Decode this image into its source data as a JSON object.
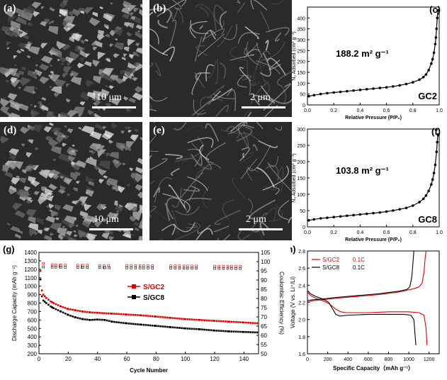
{
  "sem_panels": [
    {
      "label": "(a)",
      "scale": "10 μm"
    },
    {
      "label": "(b)",
      "scale": "2 μm"
    },
    {
      "label": "(d)",
      "scale": "10 μm"
    },
    {
      "label": "(e)",
      "scale": "2 μm"
    }
  ],
  "chart_data": [
    {
      "panel": "(c)",
      "type": "line",
      "xlabel": "Relative Pressure (P/P₀)",
      "ylabel": "N₂ Adsorbed (cm³ g⁻¹)",
      "xlim": [
        0.0,
        1.0
      ],
      "ylim": [
        0,
        450
      ],
      "xticks": [
        "0.0",
        "0.2",
        "0.4",
        "0.6",
        "0.8",
        "1.0"
      ],
      "yticks": [
        "0",
        "50",
        "100",
        "150",
        "200",
        "250",
        "300",
        "350",
        "400"
      ],
      "annotation": "188.2 m² g⁻¹",
      "sample": "GC2",
      "color": "#000000",
      "x": [
        0.01,
        0.05,
        0.1,
        0.15,
        0.2,
        0.25,
        0.3,
        0.35,
        0.4,
        0.45,
        0.5,
        0.55,
        0.6,
        0.65,
        0.7,
        0.75,
        0.8,
        0.85,
        0.88,
        0.9,
        0.92,
        0.94,
        0.95,
        0.96,
        0.97,
        0.975,
        0.98,
        0.985,
        0.99
      ],
      "y": [
        40,
        45,
        50,
        54,
        57,
        60,
        63,
        66,
        69,
        72,
        75,
        78,
        81,
        85,
        90,
        96,
        104,
        116,
        128,
        140,
        160,
        190,
        210,
        240,
        280,
        310,
        350,
        400,
        435
      ]
    },
    {
      "panel": "(f)",
      "type": "line",
      "xlabel": "Relative Pressure (P/P₀)",
      "ylabel": "N₂ Adsorbed (cm³ g⁻¹)",
      "xlim": [
        0.0,
        1.0
      ],
      "ylim": [
        0,
        300
      ],
      "xticks": [
        "0.0",
        "0.2",
        "0.4",
        "0.6",
        "0.8",
        "1.0"
      ],
      "yticks": [
        "0",
        "50",
        "100",
        "150",
        "200",
        "250",
        "300"
      ],
      "annotation": "103.8 m² g⁻¹",
      "sample": "GC8",
      "color": "#000000",
      "x": [
        0.01,
        0.05,
        0.1,
        0.15,
        0.2,
        0.25,
        0.3,
        0.35,
        0.4,
        0.45,
        0.5,
        0.55,
        0.6,
        0.65,
        0.7,
        0.75,
        0.8,
        0.85,
        0.88,
        0.9,
        0.92,
        0.94,
        0.95,
        0.96,
        0.97,
        0.98,
        0.985,
        0.99
      ],
      "y": [
        20,
        23,
        26,
        28,
        30,
        32,
        34,
        36,
        38,
        40,
        42,
        44,
        47,
        50,
        54,
        58,
        65,
        76,
        86,
        96,
        110,
        130,
        145,
        165,
        190,
        230,
        260,
        283
      ]
    },
    {
      "panel": "(g)",
      "type": "scatter",
      "xlabel": "Cycle Number",
      "ylabel": "Discharge Capacity (mAh g⁻¹)",
      "y2label": "Coulombic Efficiency (%)",
      "xlim": [
        0,
        150
      ],
      "ylim": [
        200,
        1400
      ],
      "y2lim": [
        50,
        105
      ],
      "xticks": [
        "0",
        "20",
        "40",
        "60",
        "80",
        "100",
        "120",
        "140"
      ],
      "yticks": [
        "200",
        "300",
        "400",
        "500",
        "600",
        "700",
        "800",
        "900",
        "1000",
        "1100",
        "1200",
        "1300",
        "1400"
      ],
      "y2ticks": [
        "50",
        "55",
        "60",
        "65",
        "70",
        "75",
        "80",
        "85",
        "90",
        "95",
        "100",
        "105"
      ],
      "legend_position": "center",
      "series": [
        {
          "name": "S/GC2",
          "color": "#e00000",
          "x": [
            1,
            2,
            3,
            5,
            8,
            10,
            15,
            20,
            25,
            30,
            35,
            40,
            50,
            60,
            70,
            80,
            90,
            100,
            110,
            120,
            130,
            140,
            150
          ],
          "y": [
            1180,
            950,
            900,
            860,
            820,
            800,
            760,
            730,
            715,
            700,
            690,
            685,
            675,
            665,
            655,
            640,
            625,
            610,
            600,
            590,
            580,
            570,
            560
          ],
          "ce": [
            100,
            99,
            99,
            98.5,
            98.3,
            98.2,
            98.1,
            98,
            98,
            98,
            98,
            97.9,
            97.9,
            97.9,
            97.8,
            97.8,
            97.7,
            97.6,
            97.6,
            97.5,
            97.5,
            97.4,
            97.4
          ]
        },
        {
          "name": "S/GC8",
          "color": "#000000",
          "x": [
            1,
            2,
            3,
            5,
            8,
            10,
            15,
            20,
            25,
            30,
            35,
            40,
            45,
            50,
            60,
            70,
            80,
            90,
            100,
            110,
            120,
            130,
            140,
            150
          ],
          "y": [
            1080,
            880,
            830,
            800,
            760,
            740,
            700,
            660,
            630,
            610,
            600,
            605,
            600,
            580,
            560,
            545,
            530,
            515,
            500,
            490,
            475,
            465,
            458,
            452
          ],
          "ce": [
            97.5,
            97.2,
            97.1,
            97,
            97,
            97,
            97,
            96.9,
            96.9,
            96.8,
            96.8,
            96.8,
            96.7,
            96.7,
            96.6,
            96.6,
            96.5,
            96.5,
            96.4,
            96.4,
            96.3,
            96.3,
            96.2,
            96.2
          ]
        }
      ]
    },
    {
      "panel": "(h)",
      "type": "line",
      "xlabel": "Specific Capacity（mAh g⁻¹）",
      "ylabel": "Voltage (V vs. Li⁺/Li)",
      "xlim": [
        0,
        1300
      ],
      "ylim": [
        1.6,
        2.8
      ],
      "xticks": [
        "0",
        "200",
        "400",
        "600",
        "800",
        "1000",
        "1200"
      ],
      "yticks": [
        "1.6",
        "1.8",
        "2.0",
        "2.2",
        "2.4",
        "2.6",
        "2.8"
      ],
      "legend_position": "top-left",
      "series": [
        {
          "name": "S/GC2",
          "rate": "0.1C",
          "color": "#e00000",
          "discharge_x": [
            0,
            30,
            80,
            150,
            220,
            280,
            330,
            380,
            450,
            600,
            800,
            1000,
            1100,
            1150,
            1170,
            1180
          ],
          "discharge_y": [
            2.32,
            2.28,
            2.25,
            2.22,
            2.18,
            2.12,
            2.09,
            2.08,
            2.08,
            2.08,
            2.09,
            2.09,
            2.08,
            2.05,
            1.9,
            1.7
          ],
          "charge_x": [
            0,
            50,
            150,
            300,
            500,
            700,
            900,
            1050,
            1100,
            1130,
            1150,
            1160,
            1170
          ],
          "charge_y": [
            2.2,
            2.22,
            2.23,
            2.25,
            2.27,
            2.29,
            2.32,
            2.36,
            2.38,
            2.42,
            2.55,
            2.7,
            2.8
          ]
        },
        {
          "name": "S/GC8",
          "rate": "0.1C",
          "color": "#000000",
          "discharge_x": [
            0,
            30,
            80,
            150,
            210,
            250,
            280,
            320,
            400,
            600,
            800,
            950,
            1020,
            1050,
            1060,
            1070
          ],
          "discharge_y": [
            2.34,
            2.3,
            2.27,
            2.24,
            2.2,
            2.12,
            2.06,
            2.04,
            2.05,
            2.06,
            2.06,
            2.06,
            2.05,
            2.0,
            1.85,
            1.7
          ],
          "charge_x": [
            0,
            50,
            150,
            300,
            500,
            700,
            900,
            980,
            1010,
            1030,
            1040,
            1050
          ],
          "charge_y": [
            2.22,
            2.23,
            2.24,
            2.26,
            2.28,
            2.3,
            2.33,
            2.35,
            2.38,
            2.5,
            2.65,
            2.8
          ]
        }
      ]
    }
  ]
}
